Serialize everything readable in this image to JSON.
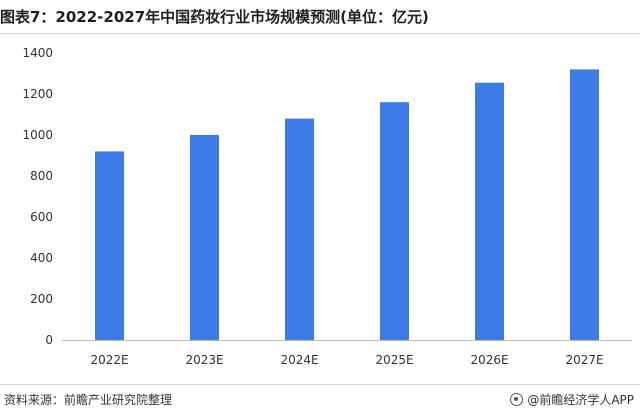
{
  "title": "图表7：2022-2027年中国药妆行业市场规模预测(单位：亿元)",
  "source_text": "资料来源：前瞻产业研究院整理",
  "brand_text": "@前瞻经济学人APP",
  "bar_color": "#3E7BE6",
  "chart_data": {
    "type": "bar",
    "title": "图表7：2022-2027年中国药妆行业市场规模预测(单位：亿元)",
    "categories": [
      "2022E",
      "2023E",
      "2024E",
      "2025E",
      "2026E",
      "2027E"
    ],
    "values": [
      920,
      1000,
      1080,
      1160,
      1255,
      1320
    ],
    "ylim": [
      0,
      1400
    ],
    "yticks": [
      0,
      200,
      400,
      600,
      800,
      1000,
      1200,
      1400
    ],
    "xlabel": "",
    "ylabel": "",
    "grid": false,
    "legend": "none"
  }
}
